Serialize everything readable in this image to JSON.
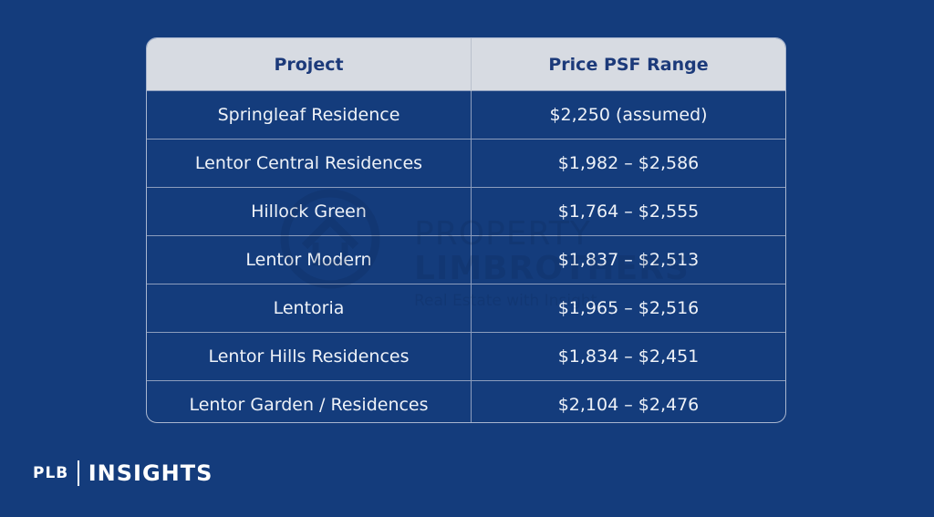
{
  "table": {
    "headers": [
      "Project",
      "Price PSF Range"
    ],
    "rows": [
      [
        "Springleaf Residence",
        "$2,250 (assumed)"
      ],
      [
        "Lentor Central Residences",
        "$1,982 – $2,586"
      ],
      [
        "Hillock Green",
        "$1,764 – $2,555"
      ],
      [
        "Lentor Modern",
        "$1,837 – $2,513"
      ],
      [
        "Lentoria",
        "$1,965 – $2,516"
      ],
      [
        "Lentor Hills Residences",
        "$1,834 – $2,451"
      ],
      [
        "Lentor Garden / Residences",
        "$2,104 – $2,476"
      ]
    ]
  },
  "watermark": {
    "line1": "PROPERTY",
    "line2": "LIMBROTHERS",
    "tagline": "Real Estate with Insight"
  },
  "brand": {
    "plb": "PLB",
    "insights": "INSIGHTS"
  },
  "colors": {
    "background": "#143c7c",
    "header_bg": "#d7dbe2",
    "header_text": "#1c3a7a",
    "cell_text": "#eef2f8"
  }
}
